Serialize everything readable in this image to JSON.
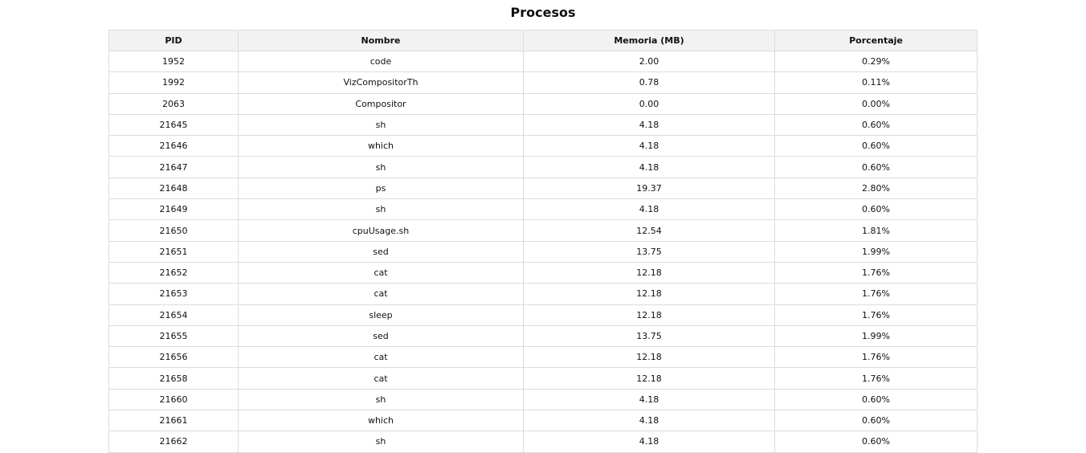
{
  "title": "Procesos",
  "table": {
    "headers": [
      "PID",
      "Nombre",
      "Memoria (MB)",
      "Porcentaje"
    ],
    "rows": [
      [
        "1952",
        "code",
        "2.00",
        "0.29%"
      ],
      [
        "1992",
        "VizCompositorTh",
        "0.78",
        "0.11%"
      ],
      [
        "2063",
        "Compositor",
        "0.00",
        "0.00%"
      ],
      [
        "21645",
        "sh",
        "4.18",
        "0.60%"
      ],
      [
        "21646",
        "which",
        "4.18",
        "0.60%"
      ],
      [
        "21647",
        "sh",
        "4.18",
        "0.60%"
      ],
      [
        "21648",
        "ps",
        "19.37",
        "2.80%"
      ],
      [
        "21649",
        "sh",
        "4.18",
        "0.60%"
      ],
      [
        "21650",
        "cpuUsage.sh",
        "12.54",
        "1.81%"
      ],
      [
        "21651",
        "sed",
        "13.75",
        "1.99%"
      ],
      [
        "21652",
        "cat",
        "12.18",
        "1.76%"
      ],
      [
        "21653",
        "cat",
        "12.18",
        "1.76%"
      ],
      [
        "21654",
        "sleep",
        "12.18",
        "1.76%"
      ],
      [
        "21655",
        "sed",
        "13.75",
        "1.99%"
      ],
      [
        "21656",
        "cat",
        "12.18",
        "1.76%"
      ],
      [
        "21658",
        "cat",
        "12.18",
        "1.76%"
      ],
      [
        "21660",
        "sh",
        "4.18",
        "0.60%"
      ],
      [
        "21661",
        "which",
        "4.18",
        "0.60%"
      ],
      [
        "21662",
        "sh",
        "4.18",
        "0.60%"
      ]
    ]
  }
}
